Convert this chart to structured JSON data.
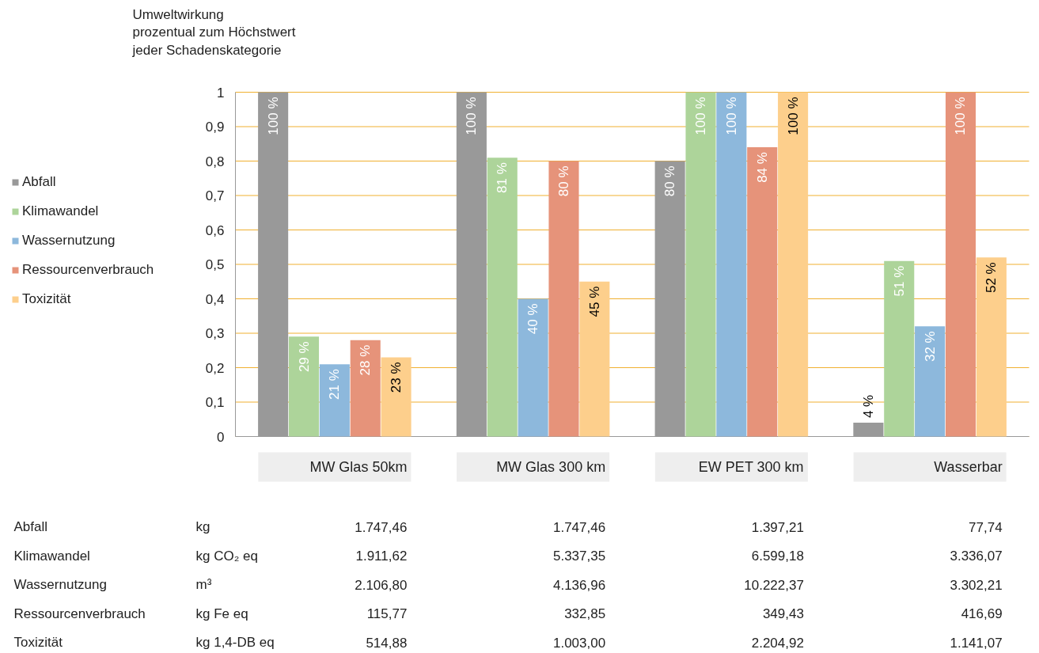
{
  "chart_data": {
    "type": "bar",
    "ylabel": "Umweltwirkung\nprozentual zum Höchstwert\njeder Schadenskategorie",
    "categories": [
      "MW Glas 50km",
      "MW Glas 300 km",
      "EW PET 300 km",
      "Wasserbar"
    ],
    "series": [
      {
        "name": "Abfall",
        "color": "#999999",
        "values": [
          1.0,
          1.0,
          0.8,
          0.04
        ],
        "value_labels": [
          "100 %",
          "100 %",
          "80 %",
          "4 %"
        ]
      },
      {
        "name": "Klimawandel",
        "color": "#add49a",
        "values": [
          0.29,
          0.81,
          1.0,
          0.51
        ],
        "value_labels": [
          "29 %",
          "81 %",
          "100 %",
          "51 %"
        ]
      },
      {
        "name": "Wassernutzung",
        "color": "#8db8dc",
        "values": [
          0.21,
          0.4,
          1.0,
          0.32
        ],
        "value_labels": [
          "21 %",
          "40 %",
          "100 %",
          "32 %"
        ]
      },
      {
        "name": "Ressourcenverbrauch",
        "color": "#e6937a",
        "values": [
          0.28,
          0.8,
          0.84,
          1.0
        ],
        "value_labels": [
          "28 %",
          "80 %",
          "84 %",
          "100 %"
        ]
      },
      {
        "name": "Toxizität",
        "color": "#fdcf8c",
        "values": [
          0.23,
          0.45,
          1.0,
          0.52
        ],
        "value_labels": [
          "23 %",
          "45 %",
          "100 %",
          "52 %"
        ]
      }
    ],
    "ylim": [
      0,
      1
    ],
    "yticks": [
      0,
      {
        "value": 0.1,
        "label": "0,1"
      },
      {
        "value": 0.2,
        "label": "0,2"
      },
      {
        "value": 0.3,
        "label": "0,3"
      },
      {
        "value": 0.4,
        "label": "0,4"
      },
      {
        "value": 0.5,
        "label": "0,5"
      },
      {
        "value": 0.6,
        "label": "0,6"
      },
      {
        "value": 0.7,
        "label": "0,7"
      },
      {
        "value": 0.8,
        "label": "0,8"
      },
      {
        "value": 0.9,
        "label": "0,9"
      },
      1
    ],
    "grid": "y",
    "legend": "left",
    "annotations": [
      "Abfall",
      "kg",
      "1.747,46",
      "1.747,46",
      "1.397,21",
      "77,74",
      "Klimawandel",
      "kg CO₂ eq",
      "1.911,62",
      "5.337,35",
      "6.599,18",
      "3.336,07",
      "Wassernutzung",
      "m³",
      "2.106,80",
      "4.136,96",
      "10.222,37",
      "3.302,21",
      "Ressourcenverbrauch",
      "kg Fe eq",
      "115,77",
      "332,85",
      "349,43",
      "416,69",
      "Toxizität",
      "kg 1,4-DB eq",
      "514,88",
      "1.003,00",
      "2.204,92",
      "1.141,07"
    ]
  }
}
